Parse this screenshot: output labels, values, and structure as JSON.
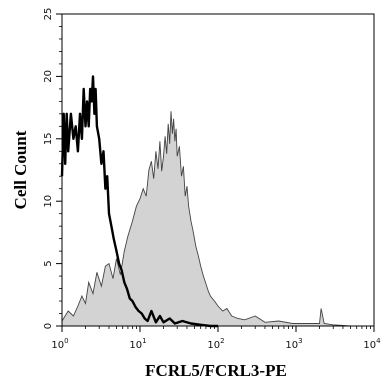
{
  "chart_data": {
    "type": "area",
    "xlabel": "FCRL5/FCRL3-PE",
    "ylabel": "Cell Count",
    "x_scale": "log",
    "xlim": [
      1,
      10000
    ],
    "ylim": [
      0,
      25
    ],
    "x_ticks": [
      {
        "value": 1,
        "base": "10",
        "exp": "0"
      },
      {
        "value": 10,
        "base": "10",
        "exp": "1"
      },
      {
        "value": 100,
        "base": "10",
        "exp": "2"
      },
      {
        "value": 1000,
        "base": "10",
        "exp": "3"
      },
      {
        "value": 10000,
        "base": "10",
        "exp": "4"
      }
    ],
    "y_ticks": [
      "0",
      "5",
      "10",
      "15",
      "20",
      "25"
    ],
    "grid": false,
    "series": [
      {
        "style": "black-outline",
        "color": "#000000",
        "x": [
          1,
          1.05,
          1.1,
          1.15,
          1.2,
          1.3,
          1.4,
          1.5,
          1.6,
          1.7,
          1.8,
          1.9,
          2.0,
          2.1,
          2.2,
          2.3,
          2.4,
          2.5,
          2.6,
          2.7,
          2.8,
          3.0,
          3.2,
          3.4,
          3.6,
          3.8,
          4.0,
          4.3,
          4.6,
          5.0,
          5.4,
          5.8,
          6.3,
          6.8,
          7.4,
          8.0,
          8.8,
          9.6,
          10.5,
          11.5,
          12.5,
          14,
          16,
          18,
          20,
          24,
          28,
          35,
          45,
          60,
          80,
          100
        ],
        "y": [
          12,
          17,
          13,
          17,
          14,
          17,
          15,
          16,
          14,
          17,
          15,
          19,
          16,
          18,
          16,
          19,
          18,
          20,
          17,
          19,
          16,
          15,
          13,
          14,
          11,
          12,
          9,
          8,
          7,
          6,
          5,
          4.5,
          3.5,
          3,
          2.2,
          2,
          1.5,
          1.2,
          1,
          0.6,
          0.4,
          1.2,
          0.3,
          0.8,
          0.3,
          0.6,
          0.2,
          0.4,
          0.2,
          0.1,
          0,
          0
        ]
      },
      {
        "style": "gray-filled",
        "color": "#d3d3d3",
        "x": [
          1,
          1.2,
          1.4,
          1.6,
          1.8,
          2.0,
          2.2,
          2.5,
          2.8,
          3.2,
          3.6,
          4.0,
          4.5,
          5.0,
          5.6,
          6.3,
          7.0,
          8.0,
          9.0,
          10,
          11,
          12,
          13,
          14,
          15,
          16,
          17,
          18,
          19,
          20,
          21,
          22,
          23,
          24,
          25,
          26,
          27,
          28,
          29,
          30,
          32,
          34,
          36,
          38,
          40,
          42,
          45,
          48,
          52,
          56,
          60,
          65,
          70,
          75,
          80,
          90,
          100,
          115,
          130,
          150,
          180,
          220,
          300,
          400,
          600,
          900,
          1500,
          2000,
          2100,
          2300,
          3000,
          5000,
          10000
        ],
        "y": [
          0.4,
          1.2,
          0.8,
          1.6,
          2.4,
          1.8,
          3.5,
          2.6,
          4.3,
          3.2,
          4.8,
          5.0,
          3.8,
          5.4,
          4.1,
          6.0,
          7.2,
          8.4,
          9.6,
          10.2,
          11.0,
          10.4,
          12.5,
          13.2,
          11.8,
          14.0,
          12.6,
          14.8,
          12.4,
          13.6,
          15.2,
          13.8,
          16.2,
          14.6,
          17.2,
          15.4,
          16.6,
          14.8,
          15.8,
          13.6,
          14.4,
          12.0,
          12.8,
          10.4,
          11.2,
          9.6,
          8.4,
          7.6,
          6.4,
          5.6,
          4.8,
          4.0,
          3.4,
          2.8,
          2.4,
          2.0,
          1.6,
          1.2,
          1.4,
          0.8,
          0.6,
          0.5,
          0.8,
          0.3,
          0.4,
          0.2,
          0.2,
          0.2,
          1.4,
          0.2,
          0.1,
          0,
          0
        ]
      }
    ]
  }
}
